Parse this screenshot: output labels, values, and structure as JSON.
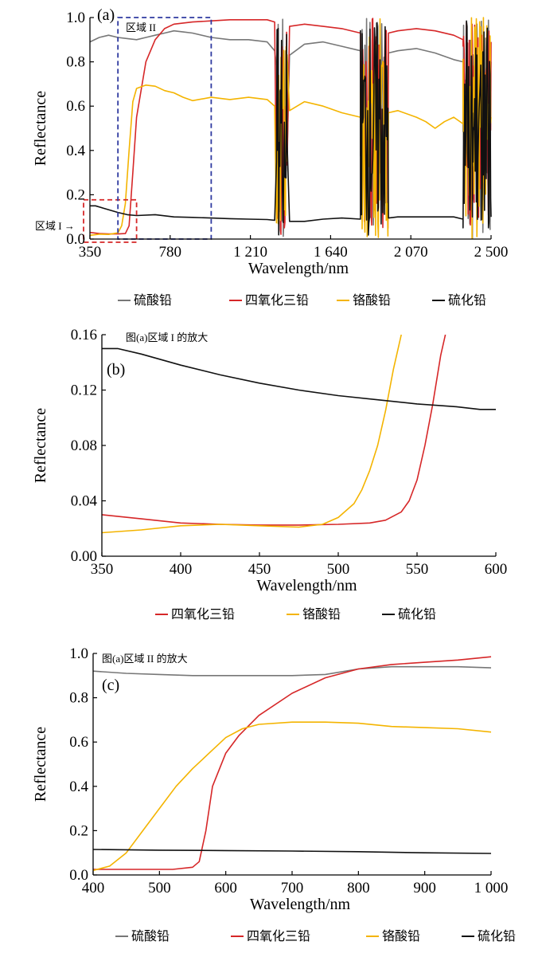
{
  "chart_data": [
    {
      "type": "line",
      "panel_label": "(a)",
      "xlabel": "Wavelength/nm",
      "ylabel": "Reflectance",
      "xlim": [
        350,
        2500
      ],
      "ylim": [
        0,
        1.0
      ],
      "xticks": [
        350,
        780,
        1210,
        1640,
        2070,
        2500
      ],
      "xtick_labels": [
        "350",
        "780",
        "1 210",
        "1 640",
        "2 070",
        "2 500"
      ],
      "yticks": [
        0,
        0.2,
        0.4,
        0.6,
        0.8,
        1.0
      ],
      "ytick_labels": [
        "0.0",
        "0.2",
        "0.4",
        "0.6",
        "0.8",
        "1.0"
      ],
      "region_1_label": "区域 I →",
      "region_2_label": "区域 II",
      "region_boxes": [
        {
          "name": "区域 I",
          "color": "#d62728",
          "x": [
            350,
            600
          ],
          "y": [
            0,
            0.17
          ]
        },
        {
          "name": "区域 II",
          "color": "#2f3aa0",
          "x": [
            500,
            1000
          ],
          "y": [
            0,
            1.0
          ]
        }
      ],
      "noise_bands": [
        [
          1350,
          1410
        ],
        [
          1800,
          1950
        ],
        [
          2350,
          2500
        ]
      ],
      "legend": [
        "硫酸铅",
        "四氧化三铅",
        "铬酸铅",
        "硫化铅"
      ],
      "series": [
        {
          "name": "硫酸铅",
          "color": "#777777",
          "x": [
            350,
            400,
            450,
            500,
            550,
            600,
            650,
            700,
            750,
            800,
            850,
            900,
            1000,
            1100,
            1200,
            1300,
            1340,
            1420,
            1500,
            1600,
            1700,
            1800,
            1950,
            2000,
            2100,
            2200,
            2300,
            2350,
            2400,
            2450,
            2500
          ],
          "y": [
            0.89,
            0.91,
            0.92,
            0.91,
            0.905,
            0.9,
            0.91,
            0.92,
            0.93,
            0.94,
            0.935,
            0.93,
            0.91,
            0.9,
            0.9,
            0.89,
            0.85,
            0.83,
            0.88,
            0.89,
            0.87,
            0.85,
            0.84,
            0.85,
            0.86,
            0.84,
            0.81,
            0.8,
            0.78,
            0.82,
            0.8
          ]
        },
        {
          "name": "四氧化三铅",
          "color": "#d62728",
          "x": [
            350,
            400,
            450,
            500,
            540,
            560,
            580,
            600,
            650,
            700,
            750,
            800,
            900,
            1000,
            1100,
            1200,
            1300,
            1340,
            1420,
            1500,
            1600,
            1700,
            1800,
            1950,
            2000,
            2100,
            2200,
            2300,
            2350,
            2400,
            2450,
            2500
          ],
          "y": [
            0.03,
            0.025,
            0.023,
            0.023,
            0.025,
            0.06,
            0.3,
            0.55,
            0.8,
            0.9,
            0.95,
            0.97,
            0.98,
            0.985,
            0.99,
            0.99,
            0.99,
            0.98,
            0.96,
            0.97,
            0.96,
            0.95,
            0.93,
            0.93,
            0.94,
            0.95,
            0.94,
            0.92,
            0.9,
            0.87,
            0.92,
            0.89
          ]
        },
        {
          "name": "铬酸铅",
          "color": "#f4b400",
          "x": [
            350,
            400,
            450,
            500,
            520,
            540,
            560,
            580,
            600,
            650,
            700,
            750,
            800,
            850,
            900,
            1000,
            1100,
            1200,
            1300,
            1340,
            1420,
            1500,
            1600,
            1700,
            1800,
            1950,
            2000,
            2100,
            2150,
            2200,
            2250,
            2300,
            2350,
            2400,
            2450,
            2500
          ],
          "y": [
            0.017,
            0.022,
            0.021,
            0.028,
            0.06,
            0.16,
            0.4,
            0.62,
            0.68,
            0.695,
            0.69,
            0.67,
            0.66,
            0.64,
            0.625,
            0.64,
            0.63,
            0.64,
            0.63,
            0.6,
            0.58,
            0.62,
            0.6,
            0.57,
            0.55,
            0.57,
            0.58,
            0.55,
            0.53,
            0.5,
            0.53,
            0.55,
            0.52,
            0.45,
            0.58,
            0.55
          ]
        },
        {
          "name": "硫化铅",
          "color": "#111111",
          "x": [
            350,
            380,
            420,
            460,
            500,
            550,
            600,
            700,
            800,
            900,
            1000,
            1100,
            1200,
            1300,
            1340,
            1420,
            1500,
            1600,
            1700,
            1800,
            1950,
            2000,
            2100,
            2200,
            2300,
            2350,
            2400,
            2450,
            2500
          ],
          "y": [
            0.15,
            0.15,
            0.14,
            0.13,
            0.12,
            0.11,
            0.106,
            0.11,
            0.1,
            0.098,
            0.095,
            0.092,
            0.09,
            0.088,
            0.085,
            0.08,
            0.08,
            0.09,
            0.095,
            0.09,
            0.095,
            0.1,
            0.1,
            0.1,
            0.1,
            0.09,
            0.1,
            0.09,
            0.1
          ]
        }
      ]
    },
    {
      "type": "line",
      "panel_label": "(b)",
      "annotation": "图(a)区域 I 的放大",
      "xlabel": "Wavelength/nm",
      "ylabel": "Reflectance",
      "xlim": [
        350,
        600
      ],
      "ylim": [
        0,
        0.16
      ],
      "xticks": [
        350,
        400,
        450,
        500,
        550,
        600
      ],
      "xtick_labels": [
        "350",
        "400",
        "450",
        "500",
        "550",
        "600"
      ],
      "yticks": [
        0,
        0.04,
        0.08,
        0.12,
        0.16
      ],
      "ytick_labels": [
        "0.00",
        "0.04",
        "0.08",
        "0.12",
        "0.16"
      ],
      "legend": [
        "四氧化三铅",
        "铬酸铅",
        "硫化铅"
      ],
      "series": [
        {
          "name": "四氧化三铅",
          "color": "#d62728",
          "x": [
            350,
            375,
            400,
            425,
            450,
            475,
            500,
            520,
            530,
            540,
            545,
            550,
            555,
            560,
            565,
            568
          ],
          "y": [
            0.03,
            0.027,
            0.024,
            0.023,
            0.0225,
            0.0225,
            0.023,
            0.024,
            0.026,
            0.032,
            0.04,
            0.055,
            0.08,
            0.11,
            0.145,
            0.16
          ]
        },
        {
          "name": "铬酸铅",
          "color": "#f4b400",
          "x": [
            350,
            375,
            400,
            425,
            450,
            475,
            490,
            500,
            510,
            515,
            520,
            525,
            530,
            535,
            540
          ],
          "y": [
            0.017,
            0.019,
            0.022,
            0.023,
            0.022,
            0.021,
            0.023,
            0.028,
            0.038,
            0.048,
            0.062,
            0.08,
            0.105,
            0.135,
            0.16
          ]
        },
        {
          "name": "硫化铅",
          "color": "#111111",
          "x": [
            350,
            360,
            375,
            400,
            425,
            450,
            475,
            500,
            525,
            550,
            575,
            590,
            600
          ],
          "y": [
            0.15,
            0.15,
            0.146,
            0.138,
            0.131,
            0.125,
            0.12,
            0.116,
            0.113,
            0.11,
            0.108,
            0.106,
            0.106
          ]
        }
      ]
    },
    {
      "type": "line",
      "panel_label": "(c)",
      "annotation": "图(a)区域 II 的放大",
      "xlabel": "Wavelength/nm",
      "ylabel": "Reflectance",
      "xlim": [
        400,
        1000
      ],
      "ylim": [
        0,
        1.0
      ],
      "xticks": [
        400,
        500,
        600,
        700,
        800,
        900,
        1000
      ],
      "xtick_labels": [
        "400",
        "500",
        "600",
        "700",
        "800",
        "900",
        "1 000"
      ],
      "yticks": [
        0,
        0.2,
        0.4,
        0.6,
        0.8,
        1.0
      ],
      "ytick_labels": [
        "0.0",
        "0.2",
        "0.4",
        "0.6",
        "0.8",
        "1.0"
      ],
      "legend": [
        "硫酸铅",
        "四氧化三铅",
        "铬酸铅",
        "硫化铅"
      ],
      "series": [
        {
          "name": "硫酸铅",
          "color": "#777777",
          "x": [
            400,
            450,
            500,
            550,
            600,
            650,
            700,
            750,
            800,
            850,
            900,
            950,
            1000
          ],
          "y": [
            0.92,
            0.91,
            0.905,
            0.9,
            0.9,
            0.9,
            0.9,
            0.905,
            0.93,
            0.94,
            0.94,
            0.94,
            0.935
          ]
        },
        {
          "name": "四氧化三铅",
          "color": "#d62728",
          "x": [
            400,
            450,
            520,
            550,
            560,
            570,
            580,
            600,
            620,
            650,
            700,
            750,
            800,
            850,
            900,
            950,
            1000
          ],
          "y": [
            0.025,
            0.025,
            0.025,
            0.035,
            0.06,
            0.2,
            0.4,
            0.55,
            0.63,
            0.72,
            0.82,
            0.89,
            0.93,
            0.95,
            0.96,
            0.97,
            0.985
          ]
        },
        {
          "name": "铬酸铅",
          "color": "#f4b400",
          "x": [
            400,
            425,
            450,
            475,
            500,
            525,
            550,
            575,
            600,
            625,
            650,
            700,
            750,
            800,
            850,
            900,
            950,
            1000
          ],
          "y": [
            0.02,
            0.04,
            0.1,
            0.2,
            0.3,
            0.4,
            0.48,
            0.55,
            0.62,
            0.66,
            0.68,
            0.69,
            0.69,
            0.685,
            0.67,
            0.665,
            0.66,
            0.645
          ]
        },
        {
          "name": "硫化铅",
          "color": "#111111",
          "x": [
            400,
            500,
            600,
            700,
            800,
            900,
            1000
          ],
          "y": [
            0.115,
            0.112,
            0.11,
            0.108,
            0.105,
            0.1,
            0.097
          ]
        }
      ]
    }
  ]
}
